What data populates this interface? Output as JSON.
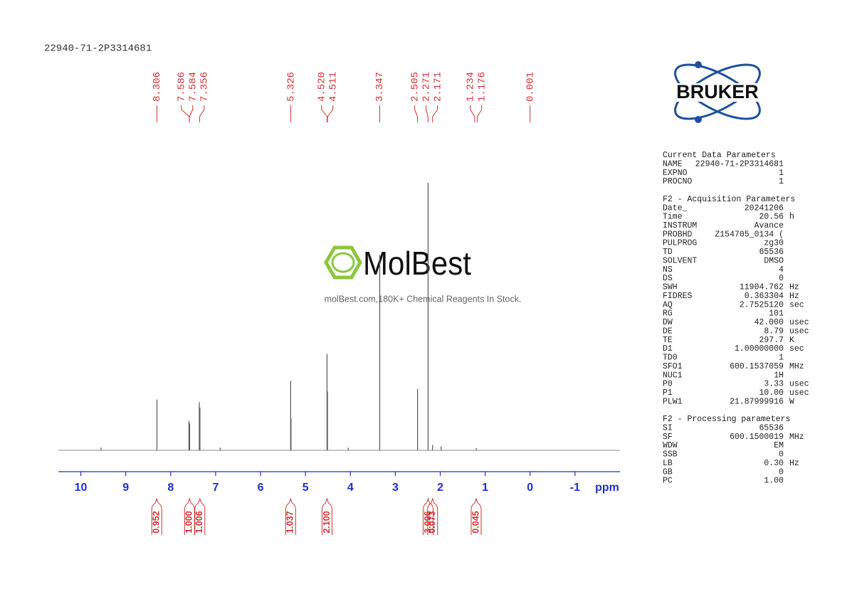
{
  "sample_id": "22940-71-2P3314681",
  "watermark": {
    "brand": "MolBest",
    "tagline": "molBest.com,180K+ Chemical Reagents In Stock."
  },
  "logo": "BRUKER",
  "chart_data": {
    "type": "nmr",
    "x_label": "ppm",
    "xlim": [
      10.5,
      -2.0
    ],
    "xticks": [
      10,
      9,
      8,
      7,
      6,
      5,
      4,
      3,
      2,
      1,
      0,
      -1
    ],
    "ylim": [
      0,
      100
    ],
    "line_color": "#555555",
    "axis_color": "#1f2fc8",
    "label_color": "#d03030",
    "spectrum": {
      "x": [
        9.55,
        8.306,
        7.593,
        7.579,
        7.363,
        7.349,
        6.9,
        5.33,
        5.322,
        4.52,
        4.511,
        4.05,
        3.347,
        2.505,
        2.271,
        2.171,
        1.98,
        1.2
      ],
      "values": [
        1,
        19,
        11,
        10,
        18,
        16,
        1,
        26,
        12,
        36,
        22,
        1,
        73,
        23,
        100,
        2,
        1.5,
        0.8
      ]
    },
    "peak_labels": {
      "values": [
        8.306,
        7.586,
        7.584,
        7.356,
        5.326,
        4.52,
        4.511,
        3.347,
        2.505,
        2.271,
        2.171,
        1.234,
        1.176,
        0.001
      ],
      "value_labels": [
        "8.306",
        "7.586",
        "7.584",
        "7.356",
        "5.326",
        "4.520",
        "4.511",
        "3.347",
        "2.505",
        "2.271",
        "2.171",
        "1.234",
        "1.176",
        "0.001"
      ]
    },
    "integrals": {
      "x": [
        8.31,
        7.58,
        7.35,
        5.33,
        4.52,
        2.27,
        2.17,
        1.2
      ],
      "values": [
        0.952,
        1,
        1.006,
        1.037,
        2.1,
        3.096,
        0.073,
        0.045
      ],
      "value_labels": [
        "0.952",
        "1.000",
        "1.006",
        "1.037",
        "2.100",
        "3.096",
        "0.073",
        "0.045"
      ]
    }
  },
  "parameters": [
    {
      "title": "Current Data Parameters",
      "rows": [
        [
          "NAME",
          "22940-71-2P3314681"
        ],
        [
          "EXPNO",
          "1"
        ],
        [
          "PROCNO",
          "1"
        ]
      ]
    },
    {
      "title": "F2 - Acquisition Parameters",
      "rows": [
        [
          "Date_",
          "20241206"
        ],
        [
          "Time",
          "20.56",
          "h"
        ],
        [
          "INSTRUM",
          "Avance"
        ],
        [
          "PROBHD",
          "Z154705_0134 ("
        ],
        [
          "PULPROG",
          "zg30"
        ],
        [
          "TD",
          "65536"
        ],
        [
          "SOLVENT",
          "DMSO"
        ],
        [
          "NS",
          "4"
        ],
        [
          "DS",
          "0"
        ],
        [
          "SWH",
          "11904.762",
          "Hz"
        ],
        [
          "FIDRES",
          "0.363304",
          "Hz"
        ],
        [
          "AQ",
          "2.7525120",
          "sec"
        ],
        [
          "RG",
          "101"
        ],
        [
          "DW",
          "42.000",
          "usec"
        ],
        [
          "DE",
          "8.79",
          "usec"
        ],
        [
          "TE",
          "297.7",
          "K"
        ],
        [
          "D1",
          "1.00000000",
          "sec"
        ],
        [
          "TD0",
          "1"
        ],
        [
          "SFO1",
          "600.1537059",
          "MHz"
        ],
        [
          "NUC1",
          "1H"
        ],
        [
          "P0",
          "3.33",
          "usec"
        ],
        [
          "P1",
          "10.00",
          "usec"
        ],
        [
          "PLW1",
          "21.87999916",
          "W"
        ]
      ]
    },
    {
      "title": "F2 - Processing parameters",
      "rows": [
        [
          "SI",
          "65536"
        ],
        [
          "SF",
          "600.1500019",
          "MHz"
        ],
        [
          "WDW",
          "EM"
        ],
        [
          "SSB",
          "0"
        ],
        [
          "LB",
          "0.30",
          "Hz"
        ],
        [
          "GB",
          "0"
        ],
        [
          "PC",
          "1.00"
        ]
      ]
    }
  ]
}
